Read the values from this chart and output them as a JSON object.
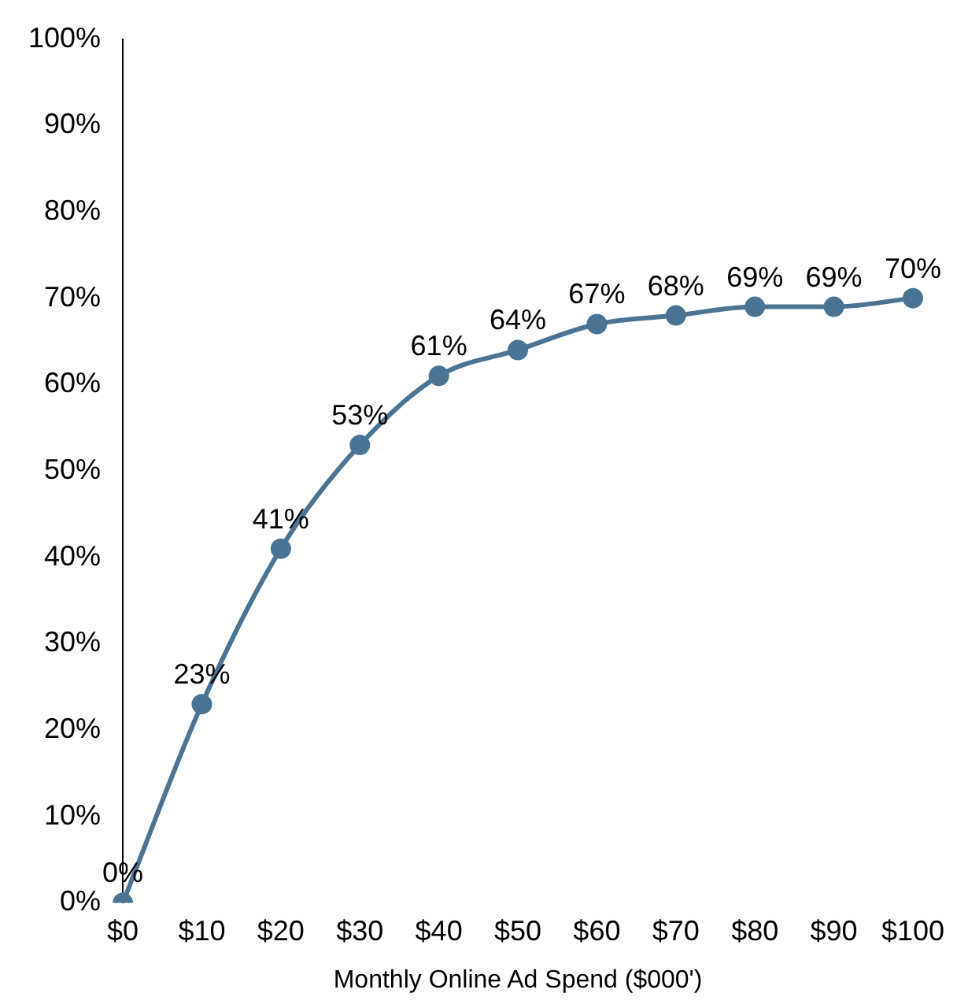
{
  "chart_data": {
    "type": "line",
    "xlabel": "Monthly Online Ad Spend ($000')",
    "categories": [
      "$0",
      "$10",
      "$20",
      "$30",
      "$40",
      "$50",
      "$60",
      "$70",
      "$80",
      "$90",
      "$100"
    ],
    "series": [
      {
        "color": "#4a7394",
        "values": [
          0,
          23,
          41,
          53,
          61,
          64,
          67,
          68,
          69,
          69,
          70
        ],
        "value_labels": [
          "0%",
          "23%",
          "41%",
          "53%",
          "61%",
          "64%",
          "67%",
          "68%",
          "69%",
          "69%",
          "70%"
        ]
      }
    ],
    "ylim": [
      0,
      100
    ],
    "yticks": [
      {
        "value": 0,
        "label": "0%"
      },
      {
        "value": 10,
        "label": "10%"
      },
      {
        "value": 20,
        "label": "20%"
      },
      {
        "value": 30,
        "label": "30%"
      },
      {
        "value": 40,
        "label": "40%"
      },
      {
        "value": 50,
        "label": "50%"
      },
      {
        "value": 60,
        "label": "60%"
      },
      {
        "value": 70,
        "label": "70%"
      },
      {
        "value": 80,
        "label": "80%"
      },
      {
        "value": 90,
        "label": "90%"
      },
      {
        "value": 100,
        "label": "100%"
      }
    ],
    "grid": false,
    "legend": false,
    "marker": "circle",
    "line_style": "solid"
  }
}
